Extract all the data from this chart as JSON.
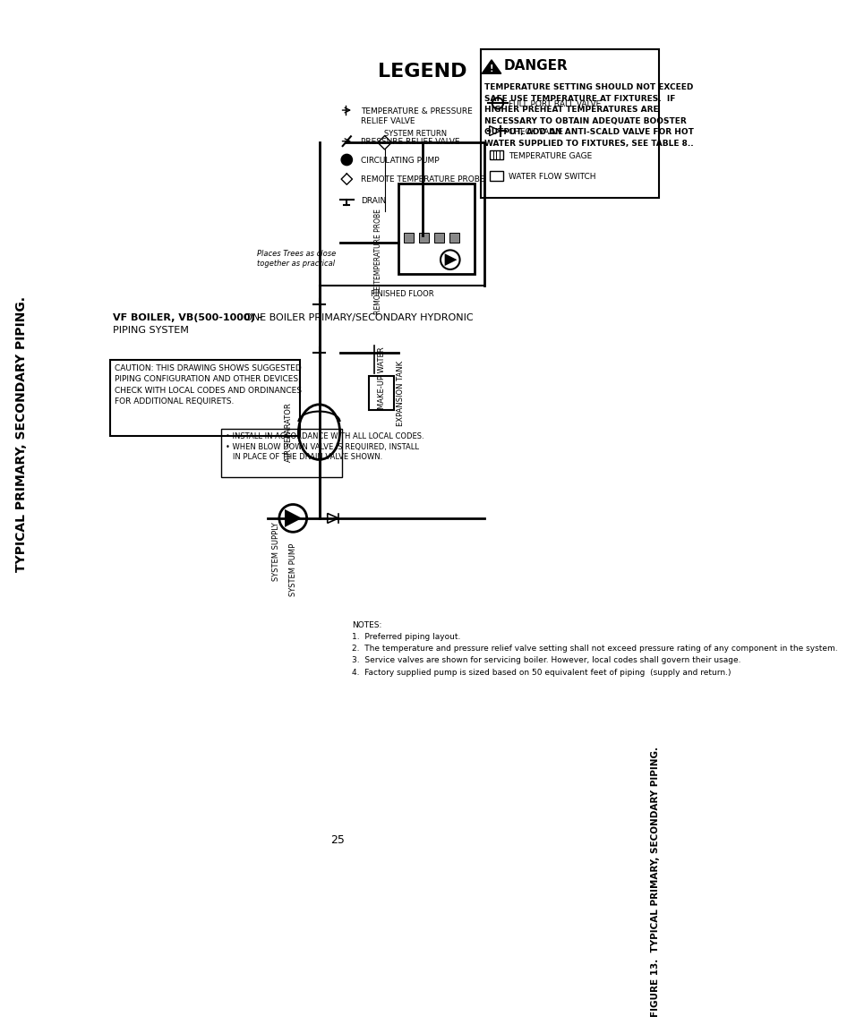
{
  "background_color": "#ffffff",
  "page_title": "TYPICAL PRIMARY, SECONDARY PIPING.",
  "legend_title": "LEGEND",
  "vf_boiler_text": "VF BOILER, VB(500-1000) - ONE BOILER PRIMARY/SECONDARY HYDRONIC\nPIPING SYSTEM",
  "caution_box_text": "CAUTION: THIS DRAWING SHOWS SUGGESTED\nPIPING CONFIGURATION AND OTHER DEVICES;\nCHECK WITH LOCAL CODES AND ORDINANCES\nFOR ADDITIONAL REQUIRETS.",
  "notes_bullets_line1": "• INSTALL IN ACCORDANCE WITH ALL LOCAL CODES.",
  "notes_bullets_line2": "• WHEN BLOW DOWN VALVE IS REQUIRED, INSTALL\n   IN PLACE OF THE DRAIN VALVE SHOWN.",
  "notes_box_text": "NOTES:\n1.  Preferred piping layout.\n2.  The temperature and pressure relief valve setting shall not exceed pressure rating of any component in the system.\n3.  Service valves are shown for servicing boiler. However, local codes shall govern their usage.\n4.  Factory supplied pump is sized based on 50 equivalent feet of piping  (supply and return.)",
  "danger_title": "DANGER",
  "danger_text": "TEMPERATURE SETTING SHOULD NOT EXCEED\nSAFE USE TEMPERATURE AT FIXTURES.  IF\nHIGHER PREHEAT TEMPERATURES ARE\nNECESSARY TO OBTAIN ADEQUATE BOOSTER\nOUTPUT, ADD AN ANTI-SCALD VALVE FOR HOT\nWATER SUPPLIED TO FIXTURES, SEE TABLE 8..",
  "figure_caption": "FIGURE 13.  TYPICAL PRIMARY, SECONDARY PIPING.",
  "page_number": "25",
  "label_system_return": "SYSTEM RETURN",
  "label_finished_floor": "FINISHED FLOOR",
  "label_make_up_water": "MAKE-UP WATER",
  "label_expansion_tank": "EXPANSION TANK",
  "label_air_separator": "AIR SEPARATOR",
  "label_system_supply": "SYSTEM SUPPLY",
  "label_system_pump": "SYSTEM PUMP",
  "label_remote_temp_probe": "REMOTE TEMPERATURE PROBE",
  "label_places_trees": "Places Trees as close\ntogether as practical"
}
